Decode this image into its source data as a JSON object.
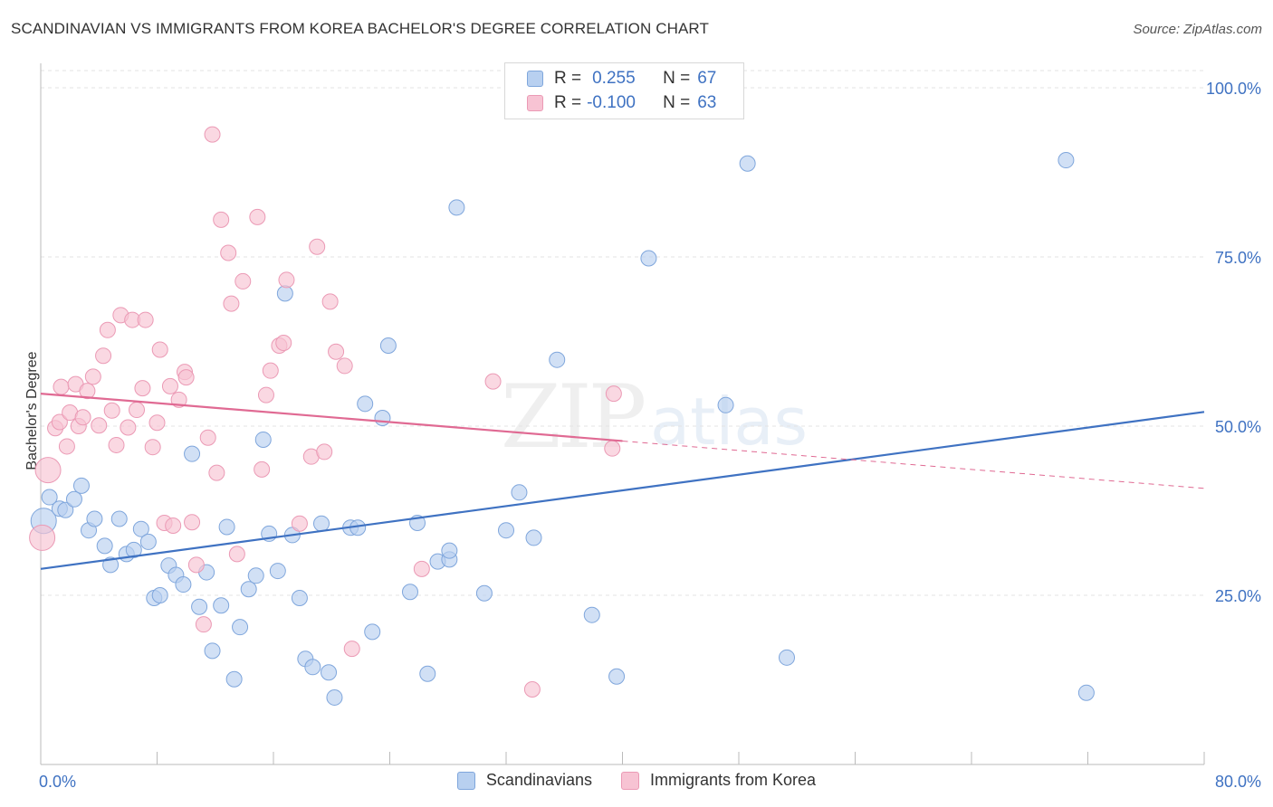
{
  "title": "SCANDINAVIAN VS IMMIGRANTS FROM KOREA BACHELOR'S DEGREE CORRELATION CHART",
  "source": "Source: ZipAtlas.com",
  "watermark": {
    "part1": "ZIP",
    "part2": "atlas"
  },
  "colors": {
    "blue": "#3f72c2",
    "blue_fill": "#b8d0f0",
    "blue_stroke": "#7fa6dc",
    "pink": "#e06a93",
    "pink_fill": "#f7c3d3",
    "pink_stroke": "#eb9ab5",
    "grid": "#e3e3e3"
  },
  "legend": {
    "rows": [
      {
        "r_label": "R =",
        "r_value": "0.255",
        "n_label": "N =",
        "n_value": "67"
      },
      {
        "r_label": "R =",
        "r_value": "-0.100",
        "n_label": "N =",
        "n_value": "63"
      }
    ]
  },
  "bottom_legend": [
    "Scandinavians",
    "Immigrants from Korea"
  ],
  "chart_data": {
    "type": "scatter",
    "title": "SCANDINAVIAN VS IMMIGRANTS FROM KOREA BACHELOR'S DEGREE CORRELATION CHART",
    "xlabel": "",
    "ylabel": "Bachelor's Degree",
    "xlim": [
      0,
      80
    ],
    "ylim": [
      0,
      103
    ],
    "x_tick_labels": [
      "0.0%",
      "80.0%"
    ],
    "y_ticks": [
      25,
      50,
      75,
      100
    ],
    "y_tick_labels": [
      "25.0%",
      "50.0%",
      "75.0%",
      "100.0%"
    ],
    "grid": true,
    "legend_position": "top-center",
    "series": [
      {
        "name": "Scandinavians",
        "color": "#3f72c2",
        "trend": {
          "x": [
            0,
            80
          ],
          "y": [
            28.9,
            52.1
          ]
        },
        "points": [
          [
            0.2,
            36.0
          ],
          [
            0.6,
            39.5
          ],
          [
            1.3,
            37.8
          ],
          [
            1.7,
            37.6
          ],
          [
            2.3,
            39.2
          ],
          [
            2.8,
            41.2
          ],
          [
            3.3,
            34.6
          ],
          [
            3.7,
            36.3
          ],
          [
            4.4,
            32.3
          ],
          [
            4.8,
            29.5
          ],
          [
            5.4,
            36.3
          ],
          [
            5.9,
            31.1
          ],
          [
            6.4,
            31.7
          ],
          [
            6.9,
            34.8
          ],
          [
            7.4,
            32.9
          ],
          [
            7.8,
            24.6
          ],
          [
            8.2,
            25.0
          ],
          [
            8.8,
            29.4
          ],
          [
            9.3,
            28.0
          ],
          [
            9.8,
            26.6
          ],
          [
            10.4,
            45.9
          ],
          [
            10.9,
            23.3
          ],
          [
            11.4,
            28.4
          ],
          [
            11.8,
            16.8
          ],
          [
            12.4,
            23.5
          ],
          [
            12.8,
            35.1
          ],
          [
            13.3,
            12.6
          ],
          [
            13.7,
            20.3
          ],
          [
            14.3,
            25.9
          ],
          [
            14.8,
            27.9
          ],
          [
            15.3,
            48.0
          ],
          [
            15.7,
            34.1
          ],
          [
            16.3,
            28.6
          ],
          [
            16.8,
            69.6
          ],
          [
            17.3,
            33.9
          ],
          [
            17.8,
            24.6
          ],
          [
            18.2,
            15.6
          ],
          [
            18.7,
            14.4
          ],
          [
            19.3,
            35.6
          ],
          [
            19.8,
            13.6
          ],
          [
            20.2,
            9.9
          ],
          [
            21.3,
            35.0
          ],
          [
            21.8,
            35.0
          ],
          [
            22.3,
            53.3
          ],
          [
            22.8,
            19.6
          ],
          [
            23.5,
            51.2
          ],
          [
            23.9,
            61.9
          ],
          [
            25.4,
            25.5
          ],
          [
            25.9,
            35.7
          ],
          [
            26.6,
            13.4
          ],
          [
            27.3,
            30.0
          ],
          [
            28.1,
            30.3
          ],
          [
            28.1,
            31.6
          ],
          [
            28.6,
            82.3
          ],
          [
            30.5,
            25.3
          ],
          [
            32.0,
            34.6
          ],
          [
            32.9,
            40.2
          ],
          [
            33.9,
            33.5
          ],
          [
            35.5,
            59.8
          ],
          [
            37.9,
            22.1
          ],
          [
            39.6,
            13.0
          ],
          [
            41.8,
            74.8
          ],
          [
            47.1,
            53.1
          ],
          [
            48.6,
            88.8
          ],
          [
            51.3,
            15.8
          ],
          [
            70.5,
            89.3
          ],
          [
            71.9,
            10.6
          ]
        ],
        "large_points": [
          [
            0.2,
            36.0
          ]
        ]
      },
      {
        "name": "Immigrants from Korea",
        "color": "#e06a93",
        "trend": {
          "x": [
            0,
            40
          ],
          "y": [
            54.8,
            47.8
          ]
        },
        "trend_dashed": {
          "x": [
            40,
            80
          ],
          "y": [
            47.8,
            40.8
          ]
        },
        "points": [
          [
            0.1,
            33.5
          ],
          [
            0.5,
            43.5
          ],
          [
            1.0,
            49.7
          ],
          [
            1.3,
            50.6
          ],
          [
            1.4,
            55.8
          ],
          [
            1.8,
            47.0
          ],
          [
            2.0,
            52.0
          ],
          [
            2.4,
            56.2
          ],
          [
            2.6,
            50.0
          ],
          [
            2.9,
            51.3
          ],
          [
            3.2,
            55.2
          ],
          [
            3.6,
            57.3
          ],
          [
            4.0,
            50.1
          ],
          [
            4.3,
            60.4
          ],
          [
            4.6,
            64.2
          ],
          [
            4.9,
            52.3
          ],
          [
            5.2,
            47.2
          ],
          [
            5.5,
            66.4
          ],
          [
            6.0,
            49.8
          ],
          [
            6.3,
            65.7
          ],
          [
            6.6,
            52.4
          ],
          [
            7.0,
            55.6
          ],
          [
            7.2,
            65.7
          ],
          [
            7.7,
            46.9
          ],
          [
            8.0,
            50.5
          ],
          [
            8.2,
            61.3
          ],
          [
            8.5,
            35.7
          ],
          [
            8.9,
            55.9
          ],
          [
            9.1,
            35.3
          ],
          [
            9.5,
            53.9
          ],
          [
            9.9,
            58.0
          ],
          [
            10.0,
            57.2
          ],
          [
            10.4,
            35.8
          ],
          [
            10.7,
            29.5
          ],
          [
            11.2,
            20.7
          ],
          [
            11.5,
            48.3
          ],
          [
            11.8,
            93.1
          ],
          [
            12.1,
            43.1
          ],
          [
            12.4,
            80.5
          ],
          [
            12.9,
            75.6
          ],
          [
            13.1,
            68.1
          ],
          [
            13.5,
            31.1
          ],
          [
            13.9,
            71.4
          ],
          [
            14.9,
            80.9
          ],
          [
            15.2,
            43.6
          ],
          [
            15.5,
            54.6
          ],
          [
            15.8,
            58.2
          ],
          [
            16.4,
            61.9
          ],
          [
            16.7,
            62.3
          ],
          [
            16.9,
            71.6
          ],
          [
            17.8,
            35.6
          ],
          [
            18.6,
            45.5
          ],
          [
            19.0,
            76.5
          ],
          [
            19.5,
            46.2
          ],
          [
            19.9,
            68.4
          ],
          [
            20.3,
            61.0
          ],
          [
            20.9,
            58.9
          ],
          [
            21.4,
            17.1
          ],
          [
            26.2,
            28.9
          ],
          [
            31.1,
            56.6
          ],
          [
            33.8,
            11.1
          ],
          [
            39.3,
            46.7
          ],
          [
            39.4,
            54.8
          ]
        ],
        "large_points": [
          [
            0.1,
            33.5
          ],
          [
            0.5,
            43.5
          ]
        ]
      }
    ]
  }
}
